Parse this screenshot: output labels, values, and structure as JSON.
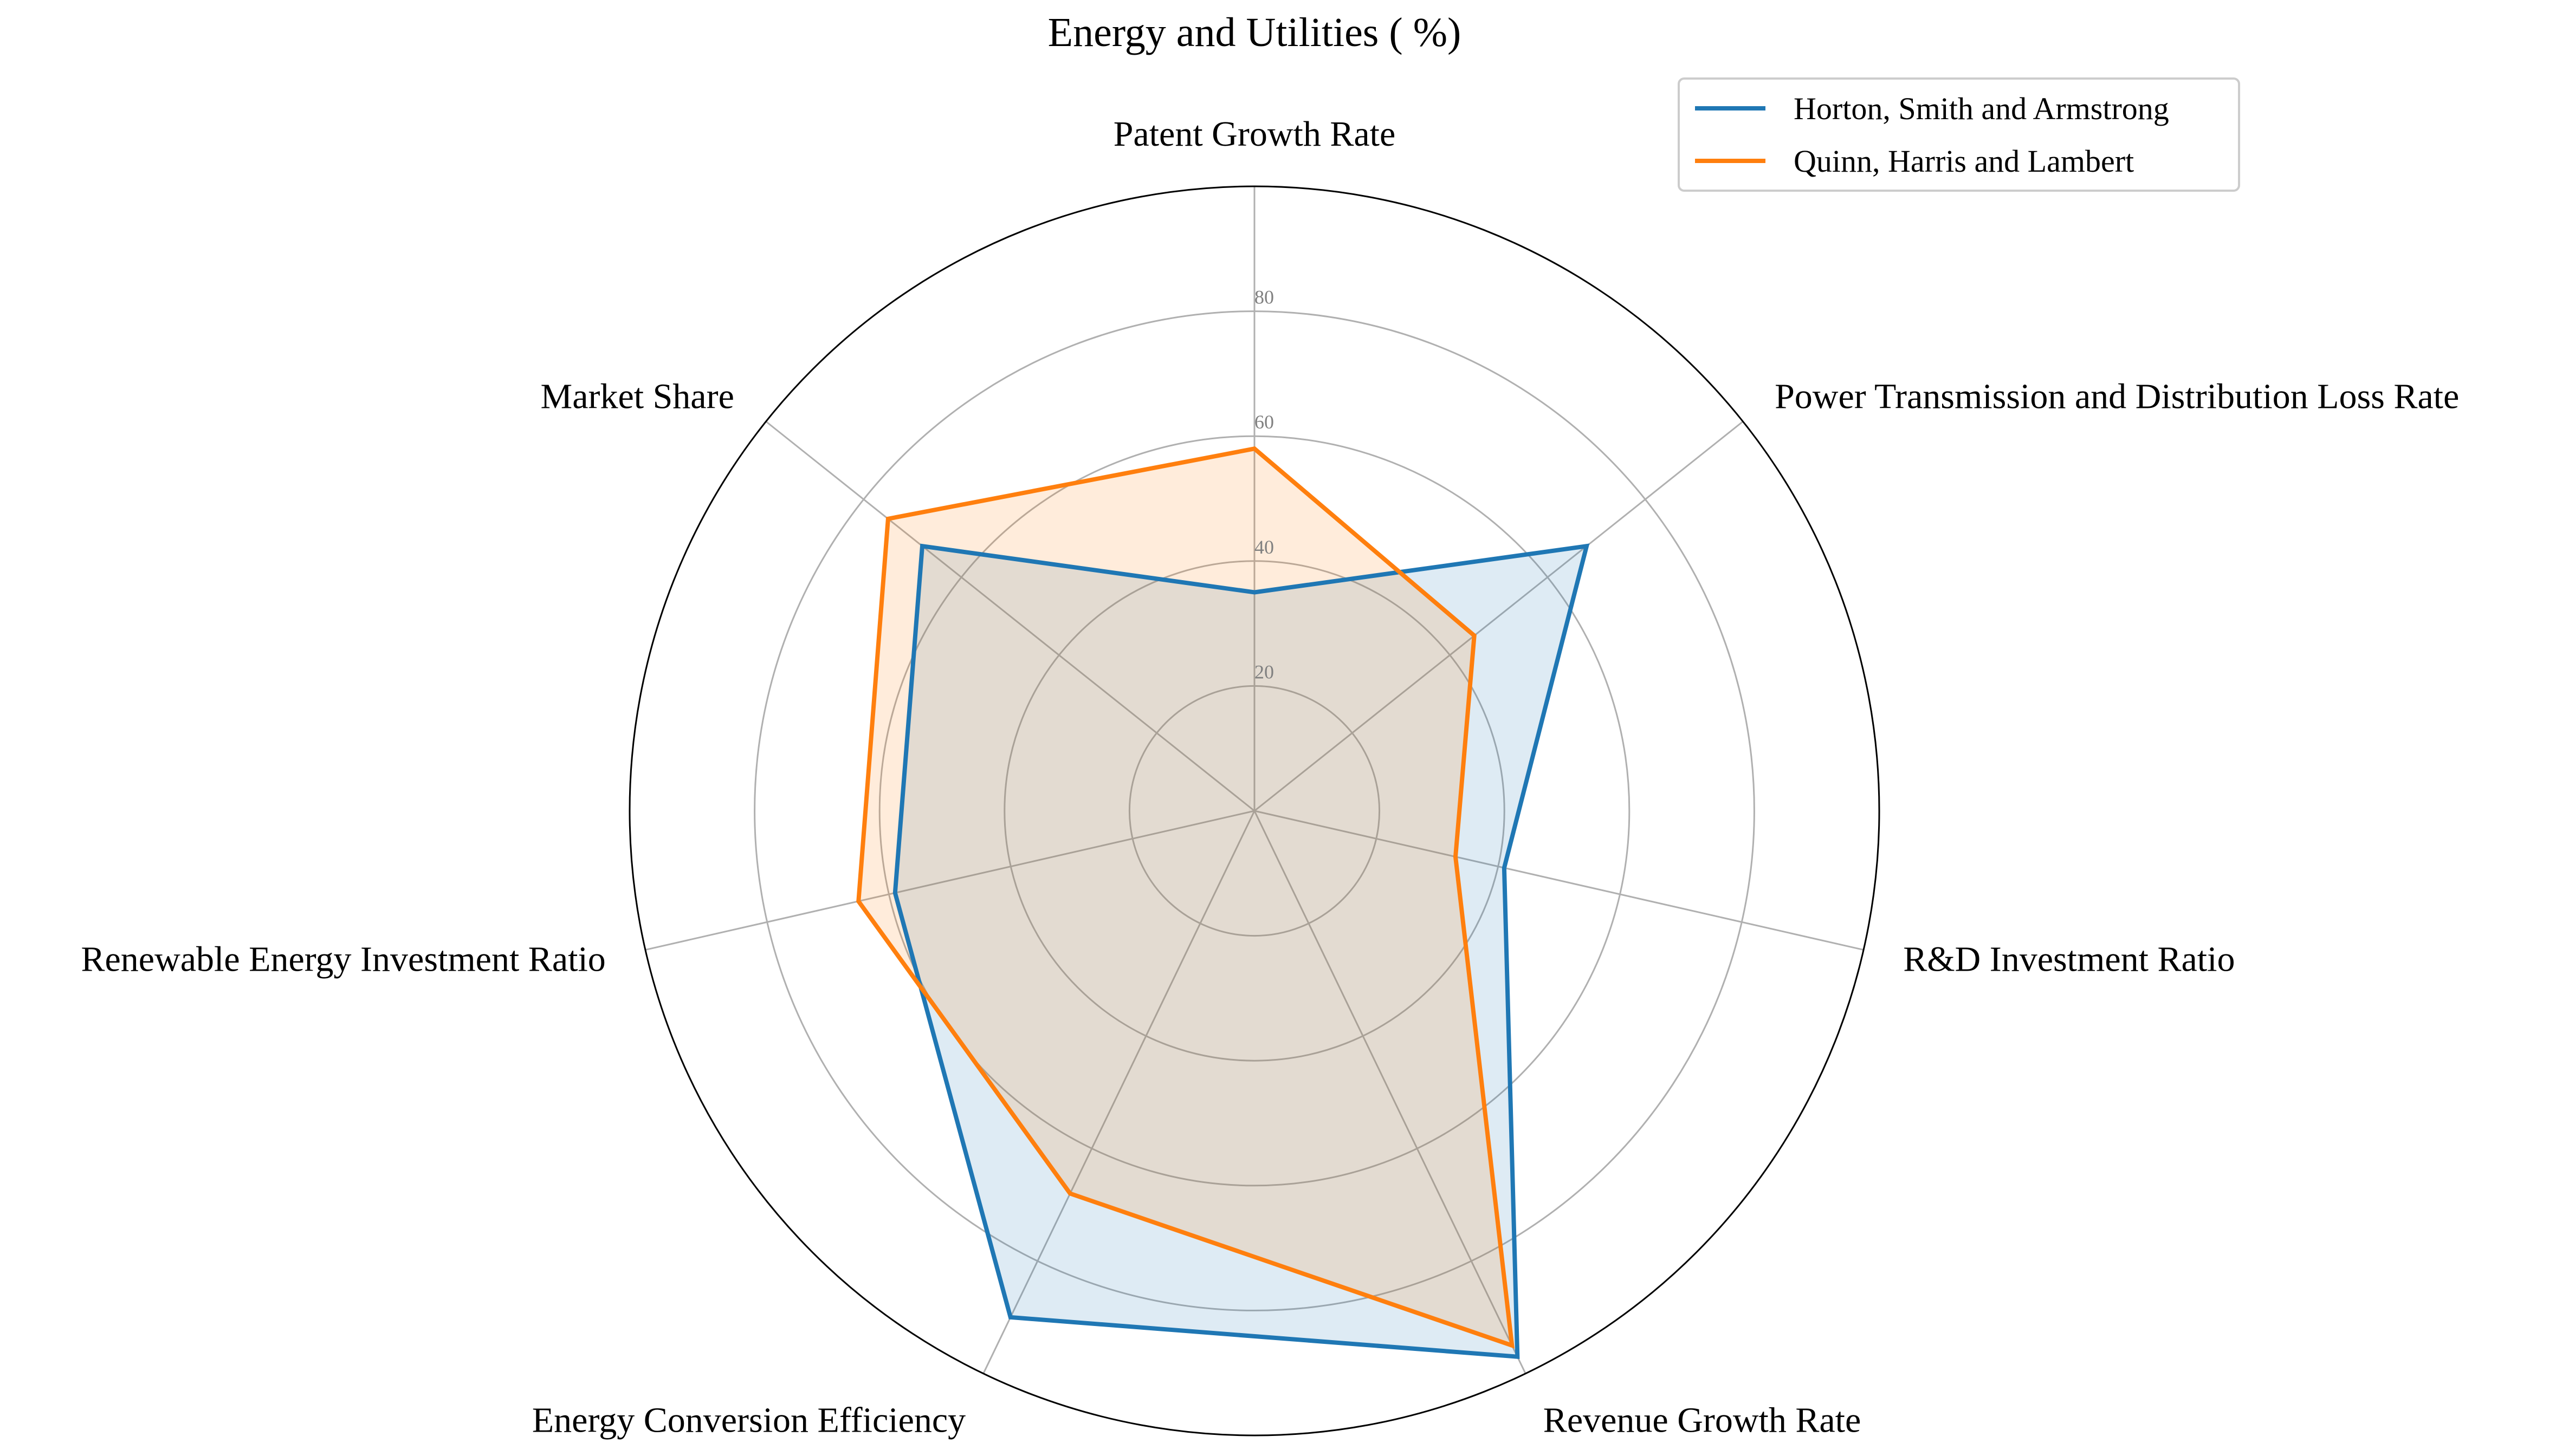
{
  "chart_data": {
    "type": "radar",
    "title": "Energy and Utilities ( %)",
    "axes": [
      "Patent Growth Rate",
      "Power Transmission and Distribution Loss Rate",
      "R&D Investment Ratio",
      "Revenue Growth Rate",
      "Energy Conversion Efficiency",
      "Renewable Energy Investment Ratio",
      "Market Share"
    ],
    "rmax": 100,
    "ticks": [
      20,
      40,
      60,
      80
    ],
    "tick_labels": [
      "20",
      "40",
      "60",
      "80"
    ],
    "grid": true,
    "legend_position": "top-right",
    "series": [
      {
        "name": "Horton, Smith and Armstrong",
        "color": "#1f77b4",
        "values": [
          35,
          68,
          41,
          97,
          90,
          59,
          68
        ]
      },
      {
        "name": "Quinn, Harris and Lambert",
        "color": "#ff7f0e",
        "values": [
          58,
          45,
          33,
          95,
          68,
          65,
          75
        ]
      }
    ]
  }
}
